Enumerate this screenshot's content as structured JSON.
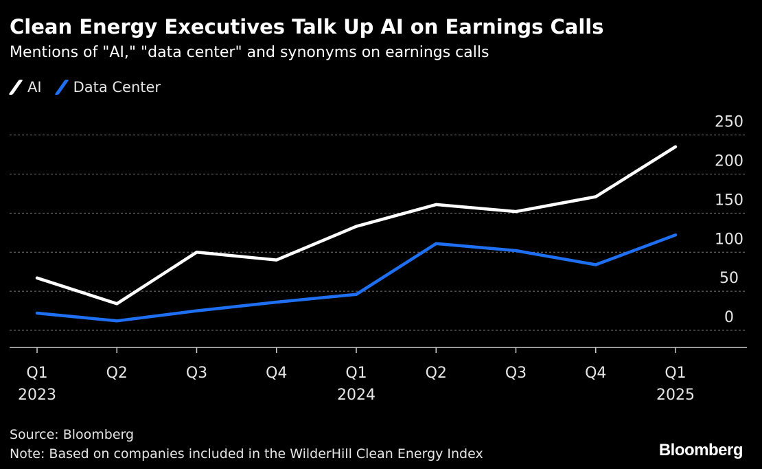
{
  "header": {
    "title": "Clean Energy Executives Talk Up AI on Earnings Calls",
    "subtitle": "Mentions of \"AI,\" \"data center\" and synonyms on earnings calls"
  },
  "footer": {
    "source": "Source: Bloomberg",
    "note": "Note: Based on companies included in the WilderHill Clean Energy Index",
    "logo": "Bloomberg"
  },
  "colors": {
    "background": "#000000",
    "ai": "#ffffff",
    "data_center": "#1f6ff2",
    "grid": "#7a7a7a"
  },
  "chart_data": {
    "type": "line",
    "title": "Clean Energy Executives Talk Up AI on Earnings Calls",
    "subtitle": "Mentions of \"AI,\" \"data center\" and synonyms on earnings calls",
    "x": [
      "Q1 2023",
      "Q2 2023",
      "Q3 2023",
      "Q4 2023",
      "Q1 2024",
      "Q2 2024",
      "Q3 2024",
      "Q4 2024",
      "Q1 2025"
    ],
    "x_tick_labels": [
      {
        "quarter": "Q1",
        "year": "2023"
      },
      {
        "quarter": "Q2",
        "year": ""
      },
      {
        "quarter": "Q3",
        "year": ""
      },
      {
        "quarter": "Q4",
        "year": ""
      },
      {
        "quarter": "Q1",
        "year": "2024"
      },
      {
        "quarter": "Q2",
        "year": ""
      },
      {
        "quarter": "Q3",
        "year": ""
      },
      {
        "quarter": "Q4",
        "year": ""
      },
      {
        "quarter": "Q1",
        "year": "2025"
      }
    ],
    "series": [
      {
        "name": "AI",
        "color": "#ffffff",
        "values": [
          67,
          34,
          100,
          90,
          133,
          161,
          152,
          171,
          235
        ]
      },
      {
        "name": "Data Center",
        "color": "#1f6ff2",
        "values": [
          22,
          12,
          25,
          36,
          46,
          111,
          102,
          84,
          122
        ]
      }
    ],
    "ylim": [
      -22,
      255
    ],
    "yticks": [
      0,
      50,
      100,
      150,
      200,
      250
    ],
    "y_axis_side": "right",
    "grid": true,
    "legend": "top-left"
  }
}
